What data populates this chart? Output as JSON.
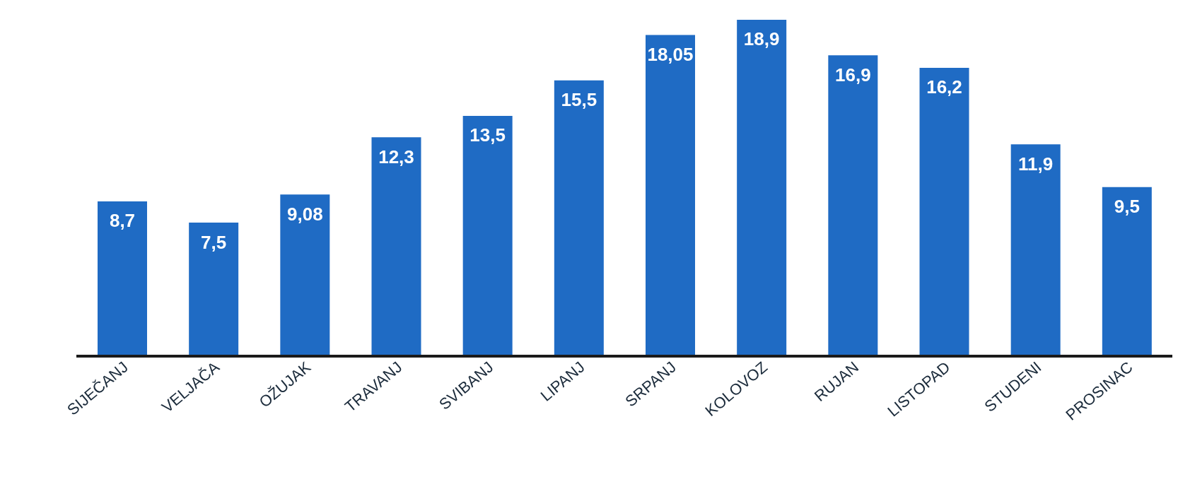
{
  "chart_data": {
    "type": "bar",
    "categories": [
      "SIJEČANJ",
      "VELJAČA",
      "OŽUJAK",
      "TRAVANJ",
      "SVIBANJ",
      "LIPANJ",
      "SRPANJ",
      "KOLOVOZ",
      "RUJAN",
      "LISTOPAD",
      "STUDENI",
      "PROSINAC"
    ],
    "values": [
      8.7,
      7.5,
      9.08,
      12.3,
      13.5,
      15.5,
      18.05,
      18.9,
      16.9,
      16.2,
      11.9,
      9.5
    ],
    "value_labels": [
      "8,7",
      "7,5",
      "9,08",
      "12,3",
      "13,5",
      "15,5",
      "18,05",
      "18,9",
      "16,9",
      "16,2",
      "11,9",
      "9,5"
    ],
    "color": "#1f6bc4",
    "tick_labels": "x"
  }
}
